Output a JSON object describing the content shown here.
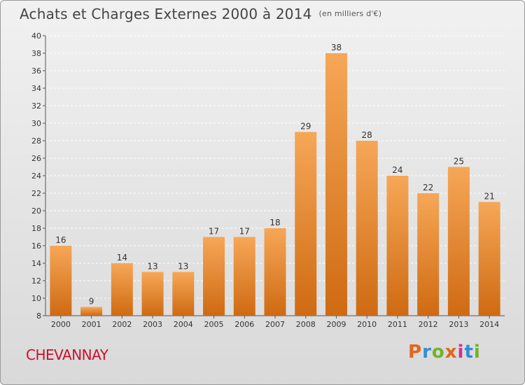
{
  "header": {
    "title": "Achats et Charges Externes 2000 à 2014",
    "unit": "(en milliers d'€)"
  },
  "footer": {
    "place": "CHEVANNAY",
    "logo": "Proxiti",
    "logo_colors": [
      "#e2661b",
      "#2e8fd6",
      "#6fb32b",
      "#e2661b",
      "#d22f8f",
      "#2e8fd6",
      "#6fb32b"
    ]
  },
  "colors": {
    "bar_top": "#f6a757",
    "bar_bottom": "#cf6a12",
    "grid": "#ffffff",
    "axis_text": "#333333"
  },
  "chart_data": {
    "type": "bar",
    "title": "Achats et Charges Externes 2000 à 2014",
    "categories": [
      "2000",
      "2001",
      "2002",
      "2003",
      "2004",
      "2005",
      "2006",
      "2007",
      "2008",
      "2009",
      "2010",
      "2011",
      "2012",
      "2013",
      "2014"
    ],
    "values": [
      16,
      9,
      14,
      13,
      13,
      17,
      17,
      18,
      29,
      38,
      28,
      24,
      22,
      25,
      21
    ],
    "ylim": [
      8,
      40
    ],
    "yticks": [
      8,
      10,
      12,
      14,
      16,
      18,
      20,
      22,
      24,
      26,
      28,
      30,
      32,
      34,
      36,
      38,
      40
    ],
    "grid": true
  }
}
